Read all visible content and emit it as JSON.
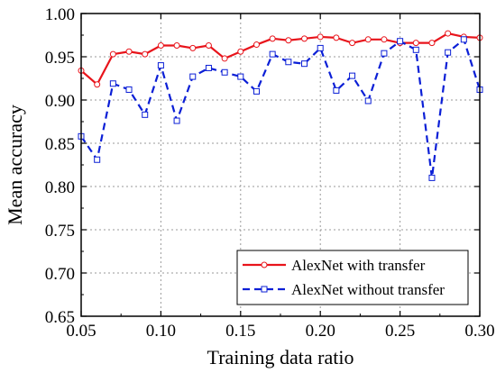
{
  "chart_data": {
    "type": "line",
    "title": "",
    "xlabel": "Training data ratio",
    "ylabel": "Mean accuracy",
    "xlim": [
      0.05,
      0.3
    ],
    "ylim": [
      0.65,
      1.0
    ],
    "x_ticks": [
      "0.05",
      "0.10",
      "0.15",
      "0.20",
      "0.25",
      "0.30"
    ],
    "y_ticks": [
      "0.65",
      "0.70",
      "0.75",
      "0.80",
      "0.85",
      "0.90",
      "0.95",
      "1.00"
    ],
    "grid": true,
    "legend_position": "bottom-right",
    "x": [
      0.05,
      0.06,
      0.07,
      0.08,
      0.09,
      0.1,
      0.11,
      0.12,
      0.13,
      0.14,
      0.15,
      0.16,
      0.17,
      0.18,
      0.19,
      0.2,
      0.21,
      0.22,
      0.23,
      0.24,
      0.25,
      0.26,
      0.27,
      0.28,
      0.29,
      0.3
    ],
    "series": [
      {
        "name": "AlexNet with transfer",
        "color": "#e8141b",
        "line_style": "solid",
        "marker": "circle",
        "values": [
          0.934,
          0.918,
          0.953,
          0.956,
          0.953,
          0.963,
          0.963,
          0.96,
          0.963,
          0.948,
          0.956,
          0.964,
          0.971,
          0.969,
          0.971,
          0.973,
          0.972,
          0.966,
          0.97,
          0.97,
          0.966,
          0.966,
          0.966,
          0.977,
          0.973,
          0.972
        ]
      },
      {
        "name": "AlexNet without transfer",
        "color": "#0b1fd6",
        "line_style": "dashed",
        "marker": "square",
        "values": [
          0.858,
          0.831,
          0.919,
          0.912,
          0.883,
          0.94,
          0.876,
          0.927,
          0.937,
          0.932,
          0.927,
          0.91,
          0.953,
          0.944,
          0.942,
          0.96,
          0.911,
          0.928,
          0.899,
          0.954,
          0.968,
          0.958,
          0.81,
          0.955,
          0.97,
          0.912
        ]
      }
    ]
  }
}
